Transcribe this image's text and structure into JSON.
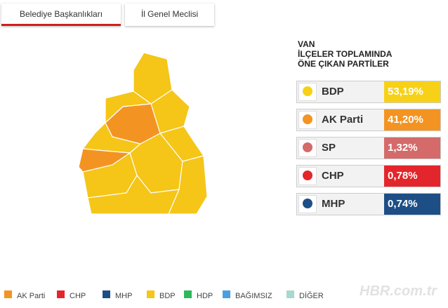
{
  "tabs": [
    "Belediye Başkanlıkları",
    "İl Genel Meclisi"
  ],
  "panel": {
    "title": [
      "VAN",
      "İLÇELER TOPLAMINDA",
      "ÖNE ÇIKAN PARTİLER"
    ],
    "parties": [
      {
        "name": "BDP",
        "value": "53,19%",
        "color": "#f7d117"
      },
      {
        "name": "AK Parti",
        "value": "41,20%",
        "color": "#f39422"
      },
      {
        "name": "SP",
        "value": "1,32%",
        "color": "#d46a6a"
      },
      {
        "name": "CHP",
        "value": "0,78%",
        "color": "#e3262b"
      },
      {
        "name": "MHP",
        "value": "0,74%",
        "color": "#1d4f86"
      }
    ]
  },
  "legend": [
    {
      "label": "AK Parti",
      "color": "#f39422"
    },
    {
      "label": "CHP",
      "color": "#e3262b"
    },
    {
      "label": "MHP",
      "color": "#1d4f86"
    },
    {
      "label": "BDP",
      "color": "#f5c518"
    },
    {
      "label": "HDP",
      "color": "#2eb85c"
    },
    {
      "label": "BAĞIMSIZ",
      "color": "#4a9fe0"
    },
    {
      "label": "DİĞER",
      "color": "#a8d8d0"
    }
  ],
  "watermark": "HBR.com.tr"
}
